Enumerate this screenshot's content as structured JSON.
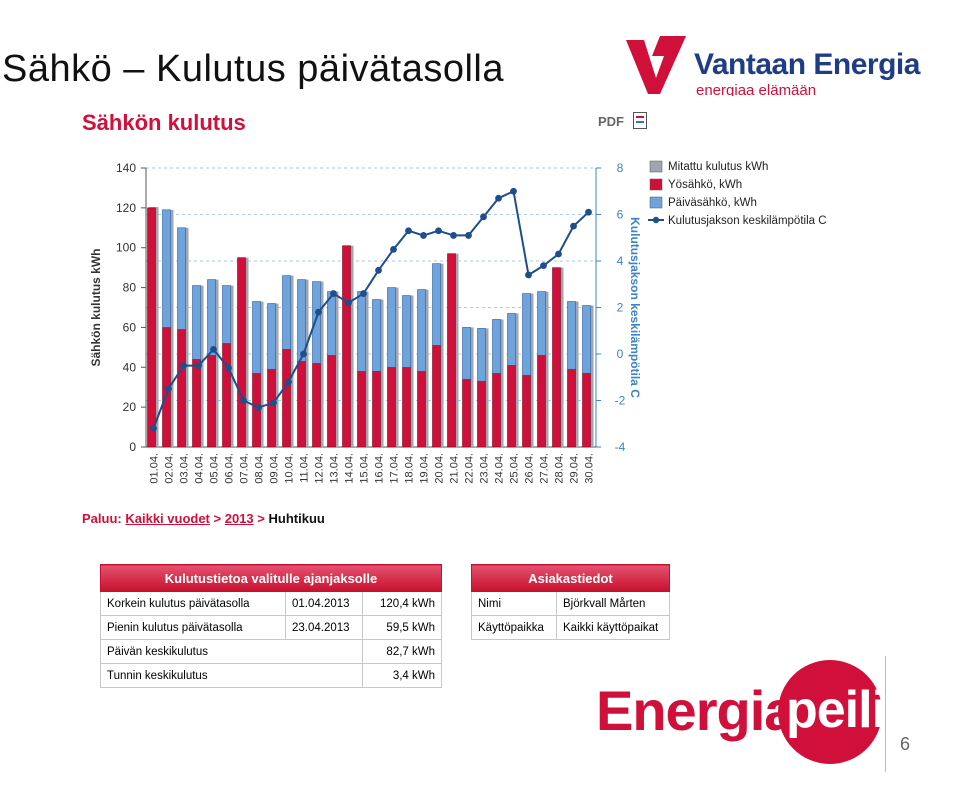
{
  "slide": {
    "title": "Sähkö – Kulutus päivätasolla",
    "page_number": "6"
  },
  "logo": {
    "name": "Vantaan Energia",
    "tagline": "energiaa elämään"
  },
  "report": {
    "title": "Sähkön kulutus",
    "pdf_label": "PDF"
  },
  "breadcrumb": {
    "label": "Paluu:",
    "all_years": "Kaikki vuodet",
    "sep1": ">",
    "year": "2013",
    "sep2": ">",
    "current": "Huhtikuu"
  },
  "stats_table": {
    "header": "Kulutustietoa valitulle ajanjaksolle",
    "rows": [
      {
        "label": "Korkein kulutus päivätasolla",
        "date": "01.04.2013",
        "value": "120,4 kWh"
      },
      {
        "label": "Pienin kulutus päivätasolla",
        "date": "23.04.2013",
        "value": "59,5 kWh"
      },
      {
        "label": "Päivän keskikulutus",
        "date": "",
        "value": "82,7 kWh"
      },
      {
        "label": "Tunnin keskikulutus",
        "date": "",
        "value": "3,4 kWh"
      }
    ]
  },
  "customer_table": {
    "header": "Asiakastiedot",
    "rows": [
      {
        "label": "Nimi",
        "value": "Björkvall Mårten"
      },
      {
        "label": "Käyttöpaikka",
        "value": "Kaikki käyttöpaikat"
      }
    ]
  },
  "brand": {
    "word1": "Energia",
    "word2": "peili"
  },
  "colors": {
    "accent_red": "#d0103a",
    "day_blue": "#6ea3dc",
    "measured_gray": "#9fa6b0",
    "temp_line": "#1f4e8c"
  },
  "chart_data": {
    "type": "bar",
    "ylabel": "Sähkön kulutus kWh",
    "y2label": "Kulutusjakson keskilämpötila C",
    "ylim": [
      0,
      140
    ],
    "y2lim": [
      -4,
      8
    ],
    "yticks": [
      "0",
      "20",
      "40",
      "60",
      "80",
      "100",
      "120",
      "140"
    ],
    "y2ticks": [
      "-4",
      "-2",
      "0",
      "2",
      "4",
      "6",
      "8"
    ],
    "categories": [
      "01.04.",
      "02.04.",
      "03.04.",
      "04.04.",
      "05.04.",
      "06.04.",
      "07.04.",
      "08.04.",
      "09.04.",
      "10.04.",
      "11.04.",
      "12.04.",
      "13.04.",
      "14.04.",
      "15.04.",
      "16.04.",
      "17.04.",
      "18.04.",
      "19.04.",
      "20.04.",
      "21.04.",
      "22.04.",
      "23.04.",
      "24.04.",
      "25.04.",
      "26.04.",
      "27.04.",
      "28.04.",
      "29.04.",
      "30.04."
    ],
    "series": [
      {
        "name": "Mitattu kulutus kWh",
        "values": [
          120.4,
          119,
          110,
          81,
          84,
          81,
          95,
          73,
          72,
          86,
          84,
          83,
          78,
          101,
          78,
          74,
          80,
          76,
          79,
          92,
          97,
          60,
          59.5,
          64,
          67,
          77,
          78,
          90,
          73,
          71
        ]
      },
      {
        "name": "Yösähkö, kWh",
        "values": [
          120,
          60,
          59,
          44,
          46,
          52,
          95,
          37,
          39,
          49,
          43,
          42,
          46,
          101,
          38,
          38,
          40,
          40,
          38,
          51,
          97,
          34,
          33,
          37,
          41,
          36,
          46,
          90,
          39,
          37
        ]
      },
      {
        "name": "Päiväsähkö, kWh",
        "values": [
          0,
          59,
          51,
          37,
          38,
          29,
          0,
          36,
          33,
          37,
          41,
          41,
          32,
          0,
          40,
          36,
          40,
          36,
          41,
          41,
          0,
          26,
          26.5,
          27,
          26,
          41,
          32,
          0,
          34,
          34
        ]
      },
      {
        "name": "Kulutusjakson keskilämpötila C",
        "values": [
          -3.2,
          -1.5,
          -0.5,
          -0.5,
          0.2,
          -0.6,
          -2,
          -2.3,
          -2.1,
          -1.2,
          0,
          1.8,
          2.6,
          2.2,
          2.6,
          3.6,
          4.5,
          5.3,
          5.1,
          5.3,
          5.1,
          5.1,
          5.9,
          6.7,
          7,
          3.4,
          3.8,
          4.3,
          5.5,
          6.1
        ]
      }
    ],
    "legend": "top-right",
    "grid": true
  }
}
